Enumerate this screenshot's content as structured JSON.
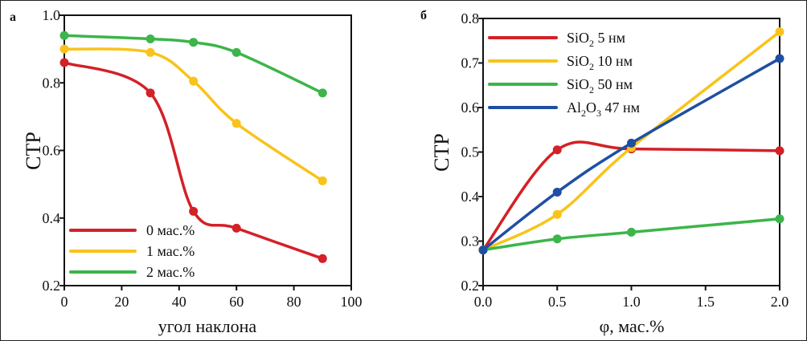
{
  "chart_data": [
    {
      "type": "line",
      "panel_label": "а",
      "xlabel": "угол наклона",
      "ylabel": "CTP",
      "xlim": [
        0,
        100
      ],
      "ylim": [
        0.2,
        1.0
      ],
      "xticks": [
        0,
        20,
        40,
        60,
        80,
        100
      ],
      "yticks": [
        0.2,
        0.4,
        0.6,
        0.8,
        1.0
      ],
      "xtick_labels": [
        "0",
        "20",
        "40",
        "60",
        "80",
        "100"
      ],
      "ytick_labels": [
        "0.2",
        "0.4",
        "0.6",
        "0.8",
        "1.0"
      ],
      "grid": false,
      "legend_position": "bottom-left",
      "x": [
        0,
        30,
        45,
        60,
        90
      ],
      "series": [
        {
          "name": "0 мас.%",
          "color": "#d42027",
          "values": [
            0.86,
            0.77,
            0.42,
            0.37,
            0.28
          ]
        },
        {
          "name": "1 мас.%",
          "color": "#f9c31a",
          "values": [
            0.9,
            0.89,
            0.805,
            0.68,
            0.51
          ]
        },
        {
          "name": "2 мас.%",
          "color": "#3cb54a",
          "values": [
            0.94,
            0.93,
            0.92,
            0.89,
            0.77
          ]
        }
      ]
    },
    {
      "type": "line",
      "panel_label": "б",
      "xlabel": "φ, мас.%",
      "ylabel": "CTP",
      "xlim": [
        0,
        2.0
      ],
      "ylim": [
        0.2,
        0.8
      ],
      "xticks": [
        0,
        0.5,
        1.0,
        1.5,
        2.0
      ],
      "yticks": [
        0.2,
        0.3,
        0.4,
        0.5,
        0.6,
        0.7,
        0.8
      ],
      "xtick_labels": [
        "0.0",
        "0.5",
        "1.0",
        "1.5",
        "2.0"
      ],
      "ytick_labels": [
        "0.2",
        "0.3",
        "0.4",
        "0.5",
        "0.6",
        "0.7",
        "0.8"
      ],
      "grid": false,
      "legend_position": "top-left",
      "x": [
        0,
        0.5,
        1.0,
        2.0
      ],
      "series": [
        {
          "name": "SiO₂ 5 нм",
          "formula": "SiO",
          "sub": "2",
          "rest": " 5 нм",
          "color": "#d42027",
          "values": [
            0.28,
            0.505,
            0.507,
            0.503
          ]
        },
        {
          "name": "SiO₂ 10 нм",
          "formula": "SiO",
          "sub": "2",
          "rest": " 10 нм",
          "color": "#f9c31a",
          "values": [
            0.28,
            0.36,
            0.51,
            0.77
          ]
        },
        {
          "name": "SiO₂ 50 нм",
          "formula": "SiO",
          "sub": "2",
          "rest": " 50 нм",
          "color": "#3cb54a",
          "values": [
            0.28,
            0.305,
            0.32,
            0.35
          ]
        },
        {
          "name": "Al₂O₃ 47 нм",
          "formula": "Al",
          "sub": "2",
          "formula2": "O",
          "sub2": "3",
          "rest": " 47 нм",
          "color": "#1f4fa3",
          "values": [
            0.28,
            0.41,
            0.52,
            0.71
          ]
        }
      ]
    }
  ]
}
